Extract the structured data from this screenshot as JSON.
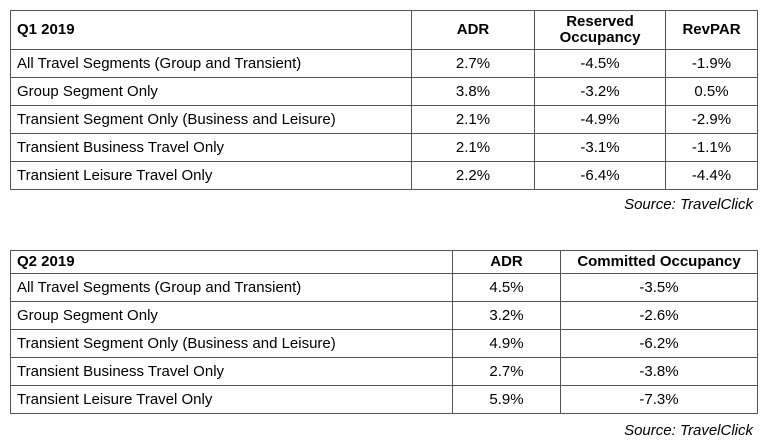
{
  "tables": [
    {
      "header": [
        "Q1 2019",
        "ADR",
        "Reserved Occupancy",
        "RevPAR"
      ],
      "rows": [
        [
          "All Travel Segments (Group and Transient)",
          "2.7%",
          "-4.5%",
          "-1.9%"
        ],
        [
          "Group Segment Only",
          "3.8%",
          "-3.2%",
          "0.5%"
        ],
        [
          "Transient Segment Only (Business and Leisure)",
          "2.1%",
          "-4.9%",
          "-2.9%"
        ],
        [
          "Transient Business Travel Only",
          "2.1%",
          "-3.1%",
          "-1.1%"
        ],
        [
          "Transient Leisure Travel Only",
          "2.2%",
          "-6.4%",
          "-4.4%"
        ]
      ],
      "source": "Source: TravelClick"
    },
    {
      "header": [
        "Q2 2019",
        "ADR",
        "Committed Occupancy"
      ],
      "rows": [
        [
          "All Travel Segments (Group and Transient)",
          "4.5%",
          "-3.5%"
        ],
        [
          "Group Segment Only",
          "3.2%",
          "-2.6%"
        ],
        [
          "Transient Segment Only (Business and Leisure)",
          "4.9%",
          "-6.2%"
        ],
        [
          "Transient Business Travel Only",
          "2.7%",
          "-3.8%"
        ],
        [
          "Transient Leisure Travel Only",
          "5.9%",
          "-7.3%"
        ]
      ],
      "source": "Source: TravelClick"
    }
  ]
}
